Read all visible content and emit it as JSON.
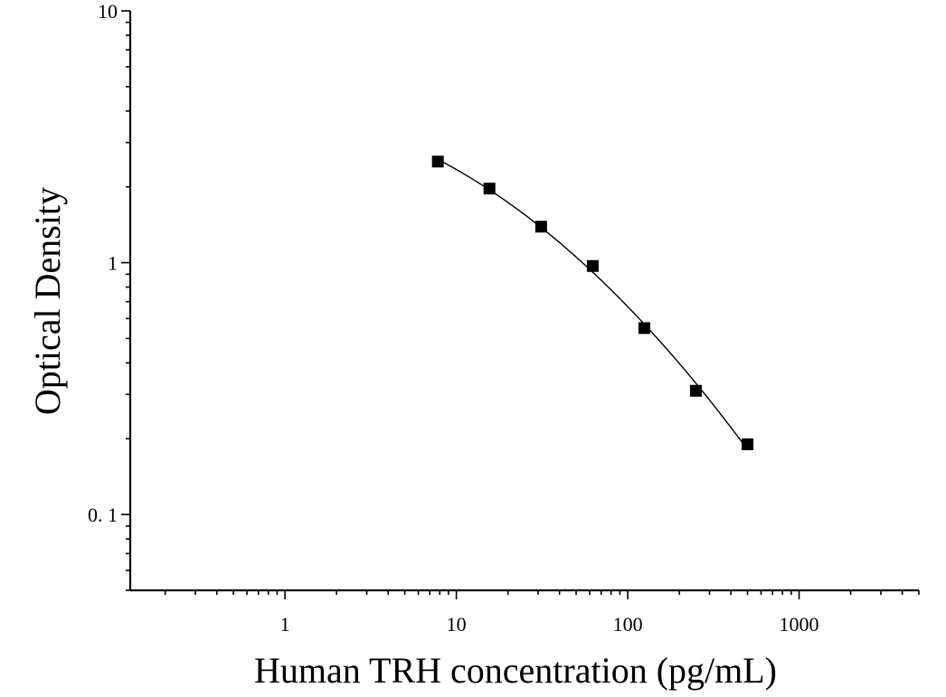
{
  "chart_data": {
    "type": "scatter",
    "title": "",
    "xlabel": "Human TRH concentration (pg/mL)",
    "ylabel": "Optical Density",
    "x_scale": "log",
    "y_scale": "log",
    "xlim": [
      0.125,
      5000
    ],
    "ylim": [
      0.05,
      10
    ],
    "x_ticks": [
      {
        "value": 1,
        "label": "1"
      },
      {
        "value": 10,
        "label": "10"
      },
      {
        "value": 100,
        "label": "100"
      },
      {
        "value": 1000,
        "label": "1000"
      }
    ],
    "y_ticks": [
      {
        "value": 0.1,
        "label": "0. 1"
      },
      {
        "value": 1,
        "label": "1"
      },
      {
        "value": 10,
        "label": "10"
      }
    ],
    "grid": false,
    "legend": "none",
    "series": [
      {
        "marker": "square",
        "color": "#000000",
        "points": [
          {
            "x": 7.8,
            "y": 2.52
          },
          {
            "x": 15.6,
            "y": 1.97
          },
          {
            "x": 31.25,
            "y": 1.39
          },
          {
            "x": 62.5,
            "y": 0.97
          },
          {
            "x": 125,
            "y": 0.55
          },
          {
            "x": 250,
            "y": 0.31
          },
          {
            "x": 500,
            "y": 0.19
          }
        ]
      }
    ],
    "fit_curve": {
      "color": "#000000",
      "x_range": [
        7.8,
        500
      ]
    }
  }
}
